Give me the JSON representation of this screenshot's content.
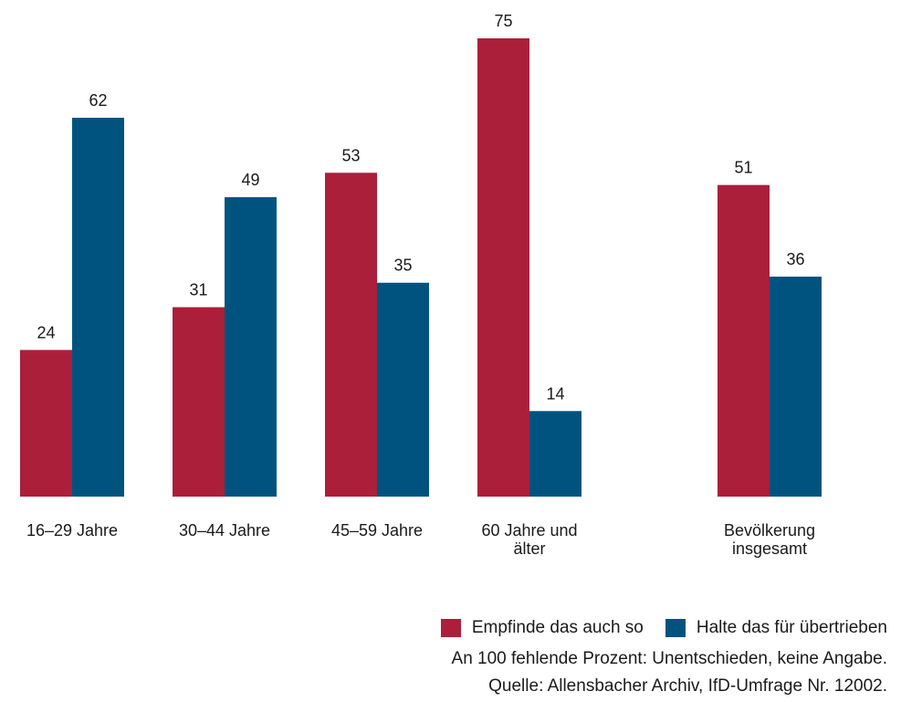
{
  "colors": {
    "series1": "#ab1f3b",
    "series2": "#00537f"
  },
  "chart_data": {
    "type": "bar",
    "categories": [
      [
        "16–29 Jahre"
      ],
      [
        "30–44 Jahre"
      ],
      [
        "45–59 Jahre"
      ],
      [
        "60 Jahre und",
        "älter"
      ],
      [
        "Bevölkerung",
        "insgesamt"
      ]
    ],
    "series": [
      {
        "name": "Empfinde das auch so",
        "values": [
          24,
          31,
          53,
          75,
          51
        ]
      },
      {
        "name": "Halte das für übertrieben",
        "values": [
          62,
          49,
          35,
          14,
          36
        ]
      }
    ],
    "ylim": [
      0,
      75
    ],
    "grid": false,
    "legend_position": "bottom-right"
  },
  "legend": {
    "item1": "Empfinde das auch so",
    "item2": "Halte das für übertrieben"
  },
  "footnote": "An 100 fehlende Prozent: Unentschieden, keine Angabe.",
  "source": "Quelle: Allensbacher Archiv, IfD-Umfrage Nr. 12002."
}
